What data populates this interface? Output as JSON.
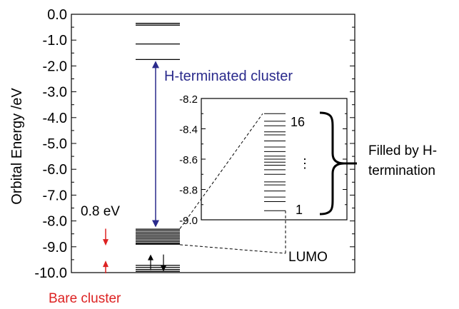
{
  "chart_data": {
    "type": "energy-level-diagram",
    "ylabel": "Orbital Energy /eV",
    "ylim": [
      -10.0,
      0.0
    ],
    "yticks": [
      "0.0",
      "-1.0",
      "-2.0",
      "-3.0",
      "-4.0",
      "-5.0",
      "-6.0",
      "-7.0",
      "-8.0",
      "-9.0",
      "-10.0"
    ],
    "h_terminated_levels": [
      -0.35,
      -0.42,
      -1.15,
      -1.75,
      -8.32,
      -8.38,
      -8.44,
      -8.5,
      -8.56,
      -8.62,
      -8.68,
      -8.74,
      -8.8,
      -8.86,
      -8.9
    ],
    "bare_cluster_levels": [
      -9.72,
      -9.8,
      -9.88,
      -9.95
    ],
    "gap_annotation": {
      "label": "0.8 eV",
      "color": "#dd2222"
    },
    "h_cluster_label": {
      "text": "H-terminated cluster",
      "color": "#2a2a8c"
    },
    "bare_cluster_label": {
      "text": "Bare cluster",
      "color": "#dd2222"
    },
    "inset": {
      "ylim": [
        -9.0,
        -8.2
      ],
      "yticks": [
        "-8.2",
        "-8.4",
        "-8.6",
        "-8.8",
        "-9.0"
      ],
      "levels": [
        -8.3,
        -8.35,
        -8.38,
        -8.42,
        -8.44,
        -8.48,
        -8.52,
        -8.55,
        -8.58,
        -8.6,
        -8.62,
        -8.64,
        -8.67,
        -8.7,
        -8.75,
        -8.77,
        -8.81,
        -8.85,
        -8.88,
        -8.94
      ],
      "top_label": "16",
      "bottom_label": "1",
      "dots": "⋮"
    },
    "lumo_label": "LUMO",
    "filled_label_lines": [
      "Filled by H-",
      "termination"
    ]
  }
}
